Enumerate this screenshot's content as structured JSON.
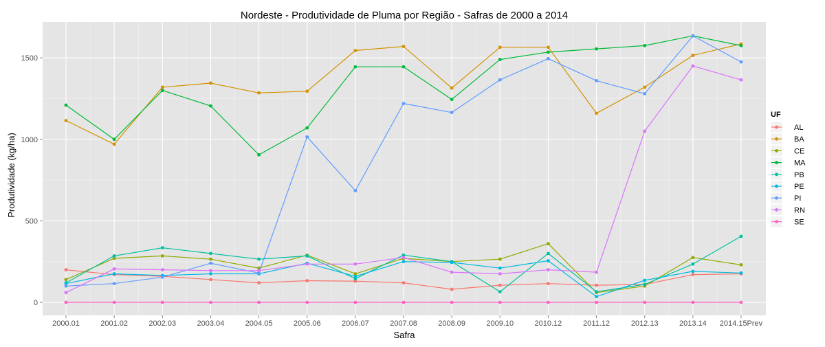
{
  "chart_data": {
    "type": "line",
    "title": "Nordeste  - Produtividade de Pluma por Região - Safras de 2000 a 2014",
    "xlabel": "Safra",
    "ylabel": "Produtividade (kg/ha)",
    "categories": [
      "2000.01",
      "2001.02",
      "2002.03",
      "2003.04",
      "2004.05",
      "2005.06",
      "2006.07",
      "2007.08",
      "2008.09",
      "2009.10",
      "2010.12",
      "2011.12",
      "2012.13",
      "2013.14",
      "2014.15Prev"
    ],
    "ylim": [
      -80,
      1720
    ],
    "yticks": [
      0,
      500,
      1000,
      1500
    ],
    "grid": true,
    "legend": {
      "title": "UF",
      "position": "right"
    },
    "series": [
      {
        "name": "AL",
        "color": "#F8766D",
        "values": [
          200,
          170,
          160,
          140,
          120,
          133,
          130,
          120,
          80,
          105,
          115,
          105,
          110,
          170,
          175
        ]
      },
      {
        "name": "BA",
        "color": "#D39200",
        "values": [
          1115,
          970,
          1320,
          1345,
          1285,
          1295,
          1545,
          1570,
          1315,
          1565,
          1565,
          1160,
          1320,
          1515,
          1585
        ]
      },
      {
        "name": "CE",
        "color": "#93AA00",
        "values": [
          140,
          270,
          285,
          265,
          210,
          290,
          175,
          270,
          250,
          265,
          360,
          60,
          100,
          275,
          230
        ]
      },
      {
        "name": "MA",
        "color": "#00BA38",
        "values": [
          1210,
          1000,
          1300,
          1205,
          905,
          1070,
          1445,
          1445,
          1245,
          1490,
          1535,
          1555,
          1575,
          1635,
          1575
        ]
      },
      {
        "name": "PB",
        "color": "#00C19F",
        "values": [
          120,
          285,
          335,
          300,
          265,
          285,
          145,
          290,
          250,
          65,
          300,
          65,
          110,
          235,
          405
        ]
      },
      {
        "name": "PE",
        "color": "#00B9E3",
        "values": [
          115,
          175,
          165,
          175,
          175,
          240,
          160,
          250,
          245,
          210,
          255,
          35,
          135,
          190,
          180
        ]
      },
      {
        "name": "PI",
        "color": "#619CFF",
        "values": [
          100,
          115,
          155,
          240,
          180,
          1015,
          685,
          1220,
          1165,
          1365,
          1495,
          1360,
          1280,
          1635,
          1475
        ]
      },
      {
        "name": "RN",
        "color": "#DB72FB",
        "values": [
          60,
          205,
          200,
          195,
          195,
          235,
          235,
          275,
          185,
          175,
          200,
          185,
          1050,
          1450,
          1365
        ]
      },
      {
        "name": "SE",
        "color": "#FF61C3",
        "values": [
          0,
          0,
          0,
          0,
          0,
          0,
          0,
          0,
          0,
          0,
          0,
          0,
          0,
          0,
          0
        ]
      }
    ]
  }
}
